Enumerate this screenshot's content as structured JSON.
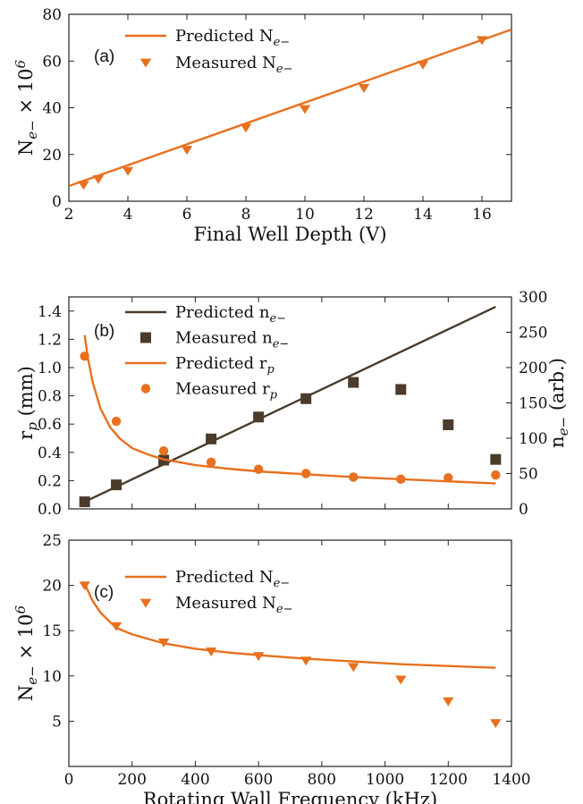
{
  "colors": {
    "orange": "#e8701e",
    "dark": "#4a3b2a"
  },
  "chart_data": [
    {
      "id": "a",
      "type": "line",
      "panel_label": "(a)",
      "xlabel": "Final Well Depth (V)",
      "ylabel": "N_{e−} × 10^6",
      "xlim": [
        2,
        17
      ],
      "ylim": [
        0,
        80
      ],
      "xticks": [
        2,
        4,
        6,
        8,
        10,
        12,
        14,
        16
      ],
      "yticks": [
        0,
        20,
        40,
        60,
        80
      ],
      "legend": {
        "position": "upper-left"
      },
      "series": [
        {
          "name": "Predicted N_{e−}",
          "kind": "line",
          "color": "#e8701e",
          "x": [
            2,
            17
          ],
          "y": [
            6.5,
            73.5
          ]
        },
        {
          "name": "Measured N_{e−}",
          "kind": "triangle",
          "color": "#e8701e",
          "x": [
            2.5,
            3,
            4,
            6,
            8,
            10,
            12,
            14,
            16
          ],
          "y": [
            7,
            9.5,
            13,
            22,
            31.5,
            39.5,
            48.5,
            58.5,
            69
          ]
        }
      ]
    },
    {
      "id": "b",
      "type": "line",
      "panel_label": "(b)",
      "xlim": [
        0,
        1400
      ],
      "ylim": [
        0,
        1.5
      ],
      "y2lim": [
        0,
        300
      ],
      "ylabel": "r_p (mm)",
      "y2label": "n_{e−} (arb.)",
      "yticks": [
        0.0,
        0.2,
        0.4,
        0.6,
        0.8,
        1.0,
        1.2,
        1.4
      ],
      "ytick_labels": [
        "0.0",
        "0.2",
        "0.4",
        "0.6",
        "0.8",
        "1.0",
        "1.2",
        "1.4"
      ],
      "y2ticks": [
        0,
        50,
        100,
        150,
        200,
        250,
        300
      ],
      "legend": {
        "position": "upper-left"
      },
      "series": [
        {
          "name": "Predicted n_{e−}",
          "kind": "line",
          "axis": "y2",
          "color": "#4a3b2a",
          "x": [
            50,
            1350
          ],
          "y": [
            10,
            286
          ]
        },
        {
          "name": "Measured n_{e−}",
          "kind": "square",
          "axis": "y2",
          "color": "#4a3b2a",
          "x": [
            50,
            150,
            300,
            450,
            600,
            750,
            900,
            1050,
            1200,
            1350
          ],
          "y": [
            10,
            34,
            69,
            99,
            130,
            156,
            179,
            169,
            119,
            70
          ]
        },
        {
          "name": "Predicted r_p",
          "kind": "curve",
          "axis": "y",
          "color": "#e8701e",
          "x": [
            50,
            60,
            75,
            100,
            130,
            160,
            200,
            250,
            300,
            400,
            500,
            600,
            750,
            900,
            1050,
            1200,
            1350
          ],
          "y": [
            1.23,
            1.07,
            0.9,
            0.71,
            0.58,
            0.5,
            0.43,
            0.385,
            0.35,
            0.31,
            0.285,
            0.265,
            0.245,
            0.225,
            0.21,
            0.195,
            0.18
          ]
        },
        {
          "name": "Measured r_p",
          "kind": "circle",
          "axis": "y",
          "color": "#e8701e",
          "x": [
            50,
            150,
            300,
            450,
            600,
            750,
            900,
            1050,
            1200,
            1350
          ],
          "y": [
            1.08,
            0.62,
            0.41,
            0.33,
            0.28,
            0.25,
            0.225,
            0.21,
            0.22,
            0.24
          ]
        }
      ]
    },
    {
      "id": "c",
      "type": "line",
      "panel_label": "(c)",
      "xlabel": "Rotating Wall Frequency (kHz)",
      "ylabel": "N_{e−} × 10^6",
      "xlim": [
        0,
        1400
      ],
      "ylim": [
        0,
        25
      ],
      "xticks": [
        0,
        200,
        400,
        600,
        800,
        1000,
        1200,
        1400
      ],
      "yticks": [
        5,
        10,
        15,
        20,
        25
      ],
      "legend": {
        "position": "upper-left"
      },
      "series": [
        {
          "name": "Predicted N_{e−}",
          "kind": "curve",
          "color": "#e8701e",
          "x": [
            50,
            75,
            100,
            150,
            200,
            300,
            400,
            500,
            600,
            750,
            900,
            1050,
            1200,
            1350
          ],
          "y": [
            20.2,
            18.3,
            17.0,
            15.3,
            14.6,
            13.6,
            13.0,
            12.6,
            12.3,
            11.9,
            11.6,
            11.3,
            11.1,
            10.9
          ]
        },
        {
          "name": "Measured N_{e−}",
          "kind": "triangle",
          "color": "#e8701e",
          "x": [
            50,
            150,
            300,
            450,
            600,
            750,
            900,
            1050,
            1200,
            1350
          ],
          "y": [
            20,
            15.5,
            13.7,
            12.7,
            12.2,
            11.7,
            11,
            9.6,
            7.2,
            4.8
          ]
        }
      ]
    }
  ]
}
